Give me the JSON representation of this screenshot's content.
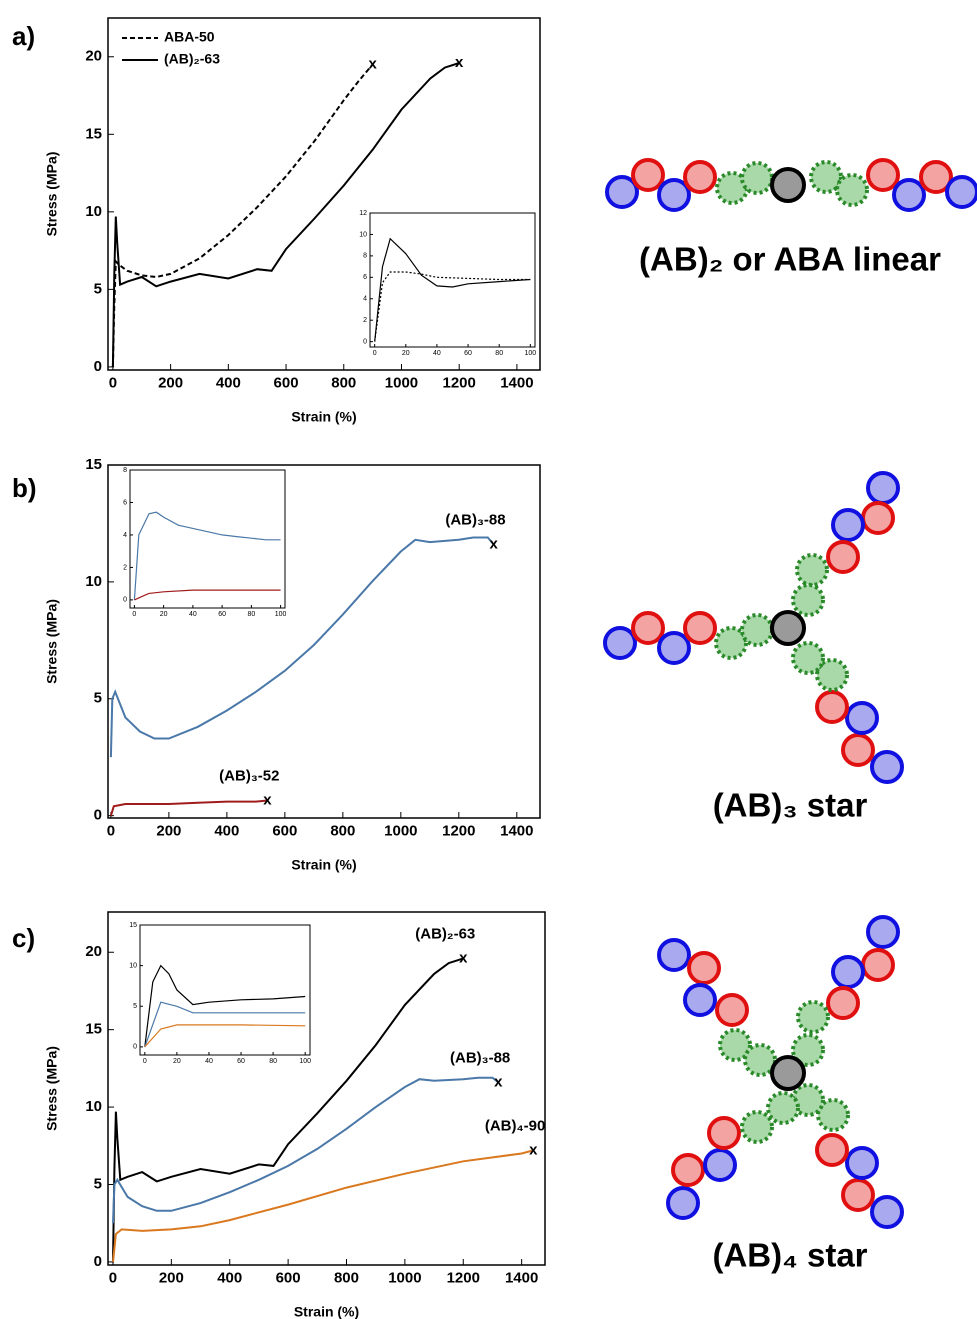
{
  "panels": [
    {
      "label": "a)",
      "diagram_label": "(AB)₂ or ABA linear"
    },
    {
      "label": "b)",
      "diagram_label": "(AB)₃ star"
    },
    {
      "label": "c)",
      "diagram_label": "(AB)₄ star"
    }
  ],
  "chart_data": [
    {
      "type": "line",
      "xlabel": "Strain (%)",
      "ylabel": "Stress (MPa)",
      "legend": "upper left",
      "end_marker": "x",
      "xlim": [
        -17,
        1480
      ],
      "ylim": [
        -0.2,
        22.5
      ],
      "xticks": [
        0,
        200,
        400,
        600,
        800,
        1000,
        1200,
        1400
      ],
      "yticks": [
        0,
        5,
        10,
        15,
        20
      ],
      "series": [
        {
          "name": "ABA-50",
          "color": "#000000",
          "dashed": true,
          "x": [
            0,
            5,
            10,
            20,
            50,
            100,
            150,
            200,
            300,
            400,
            500,
            600,
            700,
            800,
            850,
            900
          ],
          "values": [
            0,
            4,
            6.8,
            6.6,
            6.2,
            5.9,
            5.8,
            6.0,
            7.0,
            8.5,
            10.3,
            12.3,
            14.6,
            17.2,
            18.4,
            19.5
          ]
        },
        {
          "name": "(AB)₂-63",
          "color": "#000000",
          "dashed": false,
          "x": [
            0,
            5,
            10,
            15,
            25,
            50,
            100,
            150,
            200,
            300,
            400,
            500,
            550,
            600,
            700,
            800,
            900,
            1000,
            1100,
            1150,
            1200
          ],
          "values": [
            0,
            6,
            9.7,
            8,
            5.3,
            5.5,
            5.8,
            5.2,
            5.5,
            6.0,
            5.7,
            6.3,
            6.2,
            7.6,
            9.6,
            11.7,
            14.0,
            16.6,
            18.6,
            19.3,
            19.6
          ]
        }
      ]
    },
    {
      "type": "line",
      "xlim": [
        -3,
        103
      ],
      "ylim": [
        -0.5,
        12
      ],
      "xticks": [
        0,
        20,
        40,
        60,
        80,
        100
      ],
      "yticks": [
        0,
        2,
        4,
        6,
        8,
        10,
        12
      ],
      "series": [
        {
          "color": "#000000",
          "dashed": true,
          "x": [
            0,
            5,
            10,
            20,
            30,
            40,
            60,
            80,
            100
          ],
          "values": [
            0,
            5.5,
            6.5,
            6.5,
            6.3,
            6.0,
            5.9,
            5.8,
            5.8
          ]
        },
        {
          "color": "#000000",
          "dashed": false,
          "x": [
            0,
            5,
            10,
            20,
            30,
            40,
            50,
            60,
            80,
            100
          ],
          "values": [
            0,
            7,
            9.6,
            8.2,
            6.2,
            5.2,
            5.1,
            5.4,
            5.6,
            5.8
          ]
        }
      ]
    },
    {
      "type": "line",
      "xlabel": "Strain (%)",
      "ylabel": "Stress (MPa)",
      "end_marker": "x",
      "xlim": [
        -10,
        1480
      ],
      "ylim": [
        -0.1,
        15
      ],
      "xticks": [
        0,
        200,
        400,
        600,
        800,
        1000,
        1200,
        1400
      ],
      "yticks": [
        0,
        5,
        10,
        15
      ],
      "series": [
        {
          "name": "(AB)₃-88",
          "color": "#4a78a8",
          "dashed": false,
          "x": [
            0,
            5,
            15,
            50,
            100,
            150,
            200,
            300,
            400,
            500,
            600,
            700,
            800,
            900,
            1000,
            1050,
            1100,
            1200,
            1250,
            1300,
            1320
          ],
          "values": [
            2.5,
            5.0,
            5.3,
            4.2,
            3.6,
            3.3,
            3.3,
            3.8,
            4.5,
            5.3,
            6.2,
            7.3,
            8.6,
            10.0,
            11.3,
            11.8,
            11.7,
            11.8,
            11.9,
            11.9,
            11.6
          ]
        },
        {
          "name": "(AB)₃-52",
          "color": "#a01c1c",
          "dashed": false,
          "x": [
            0,
            10,
            50,
            100,
            200,
            300,
            400,
            500,
            540
          ],
          "values": [
            0,
            0.4,
            0.5,
            0.5,
            0.5,
            0.55,
            0.6,
            0.6,
            0.65
          ]
        }
      ]
    },
    {
      "type": "line",
      "xlim": [
        -3,
        103
      ],
      "ylim": [
        -0.5,
        8
      ],
      "xticks": [
        0,
        20,
        40,
        60,
        80,
        100
      ],
      "yticks": [
        0,
        2,
        4,
        6,
        8
      ],
      "series": [
        {
          "color": "#4a78a8",
          "dashed": false,
          "x": [
            0,
            3,
            10,
            15,
            20,
            30,
            40,
            50,
            60,
            70,
            80,
            90,
            100
          ],
          "values": [
            0,
            4.0,
            5.3,
            5.4,
            5.1,
            4.6,
            4.4,
            4.2,
            4.0,
            3.9,
            3.8,
            3.7,
            3.7
          ]
        },
        {
          "color": "#a01c1c",
          "dashed": false,
          "x": [
            0,
            5,
            10,
            20,
            40,
            60,
            80,
            100
          ],
          "values": [
            0,
            0.2,
            0.4,
            0.5,
            0.6,
            0.6,
            0.6,
            0.6
          ]
        }
      ]
    },
    {
      "type": "line",
      "xlabel": "Strain (%)",
      "ylabel": "Stress (MPa)",
      "end_marker": "x",
      "xlim": [
        -17,
        1480
      ],
      "ylim": [
        -0.2,
        22.6
      ],
      "xticks": [
        0,
        200,
        400,
        600,
        800,
        1000,
        1200,
        1400
      ],
      "yticks": [
        0,
        5,
        10,
        15,
        20
      ],
      "series": [
        {
          "name": "(AB)₂-63",
          "color": "#000000",
          "dashed": false,
          "x": [
            0,
            5,
            10,
            15,
            25,
            50,
            100,
            150,
            200,
            300,
            400,
            500,
            550,
            600,
            700,
            800,
            900,
            1000,
            1100,
            1150,
            1200
          ],
          "values": [
            0,
            6,
            9.7,
            8,
            5.3,
            5.5,
            5.8,
            5.2,
            5.5,
            6.0,
            5.7,
            6.3,
            6.2,
            7.6,
            9.6,
            11.7,
            14.0,
            16.6,
            18.6,
            19.3,
            19.6
          ]
        },
        {
          "name": "(AB)₃-88",
          "color": "#4a78a8",
          "dashed": false,
          "x": [
            0,
            5,
            15,
            50,
            100,
            150,
            200,
            300,
            400,
            500,
            600,
            700,
            800,
            900,
            1000,
            1050,
            1100,
            1200,
            1250,
            1300,
            1320
          ],
          "values": [
            2.5,
            5.0,
            5.3,
            4.2,
            3.6,
            3.3,
            3.3,
            3.8,
            4.5,
            5.3,
            6.2,
            7.3,
            8.6,
            10.0,
            11.3,
            11.8,
            11.7,
            11.8,
            11.9,
            11.9,
            11.6
          ]
        },
        {
          "name": "(AB)₄-90",
          "color": "#d9781e",
          "dashed": false,
          "x": [
            0,
            10,
            30,
            100,
            200,
            300,
            400,
            600,
            800,
            1000,
            1200,
            1400,
            1440
          ],
          "values": [
            0,
            1.8,
            2.1,
            2.0,
            2.1,
            2.3,
            2.7,
            3.7,
            4.8,
            5.7,
            6.5,
            7.0,
            7.2
          ]
        }
      ]
    },
    {
      "type": "line",
      "xlim": [
        -3,
        103
      ],
      "ylim": [
        -1,
        15
      ],
      "xticks": [
        0,
        20,
        40,
        60,
        80,
        100
      ],
      "yticks": [
        0,
        5,
        10,
        15
      ],
      "series": [
        {
          "color": "#000000",
          "dashed": false,
          "x": [
            0,
            5,
            10,
            15,
            20,
            30,
            40,
            60,
            80,
            100
          ],
          "values": [
            0,
            8,
            10,
            9,
            7,
            5.2,
            5.5,
            5.8,
            5.9,
            6.2
          ]
        },
        {
          "color": "#4a78a8",
          "dashed": false,
          "x": [
            0,
            10,
            20,
            30,
            60,
            100
          ],
          "values": [
            0,
            5.5,
            5,
            4.2,
            4.2,
            4.2
          ]
        },
        {
          "color": "#d9781e",
          "dashed": false,
          "x": [
            0,
            10,
            20,
            40,
            60,
            100
          ],
          "values": [
            0,
            2.2,
            2.7,
            2.7,
            2.7,
            2.6
          ]
        }
      ]
    }
  ]
}
